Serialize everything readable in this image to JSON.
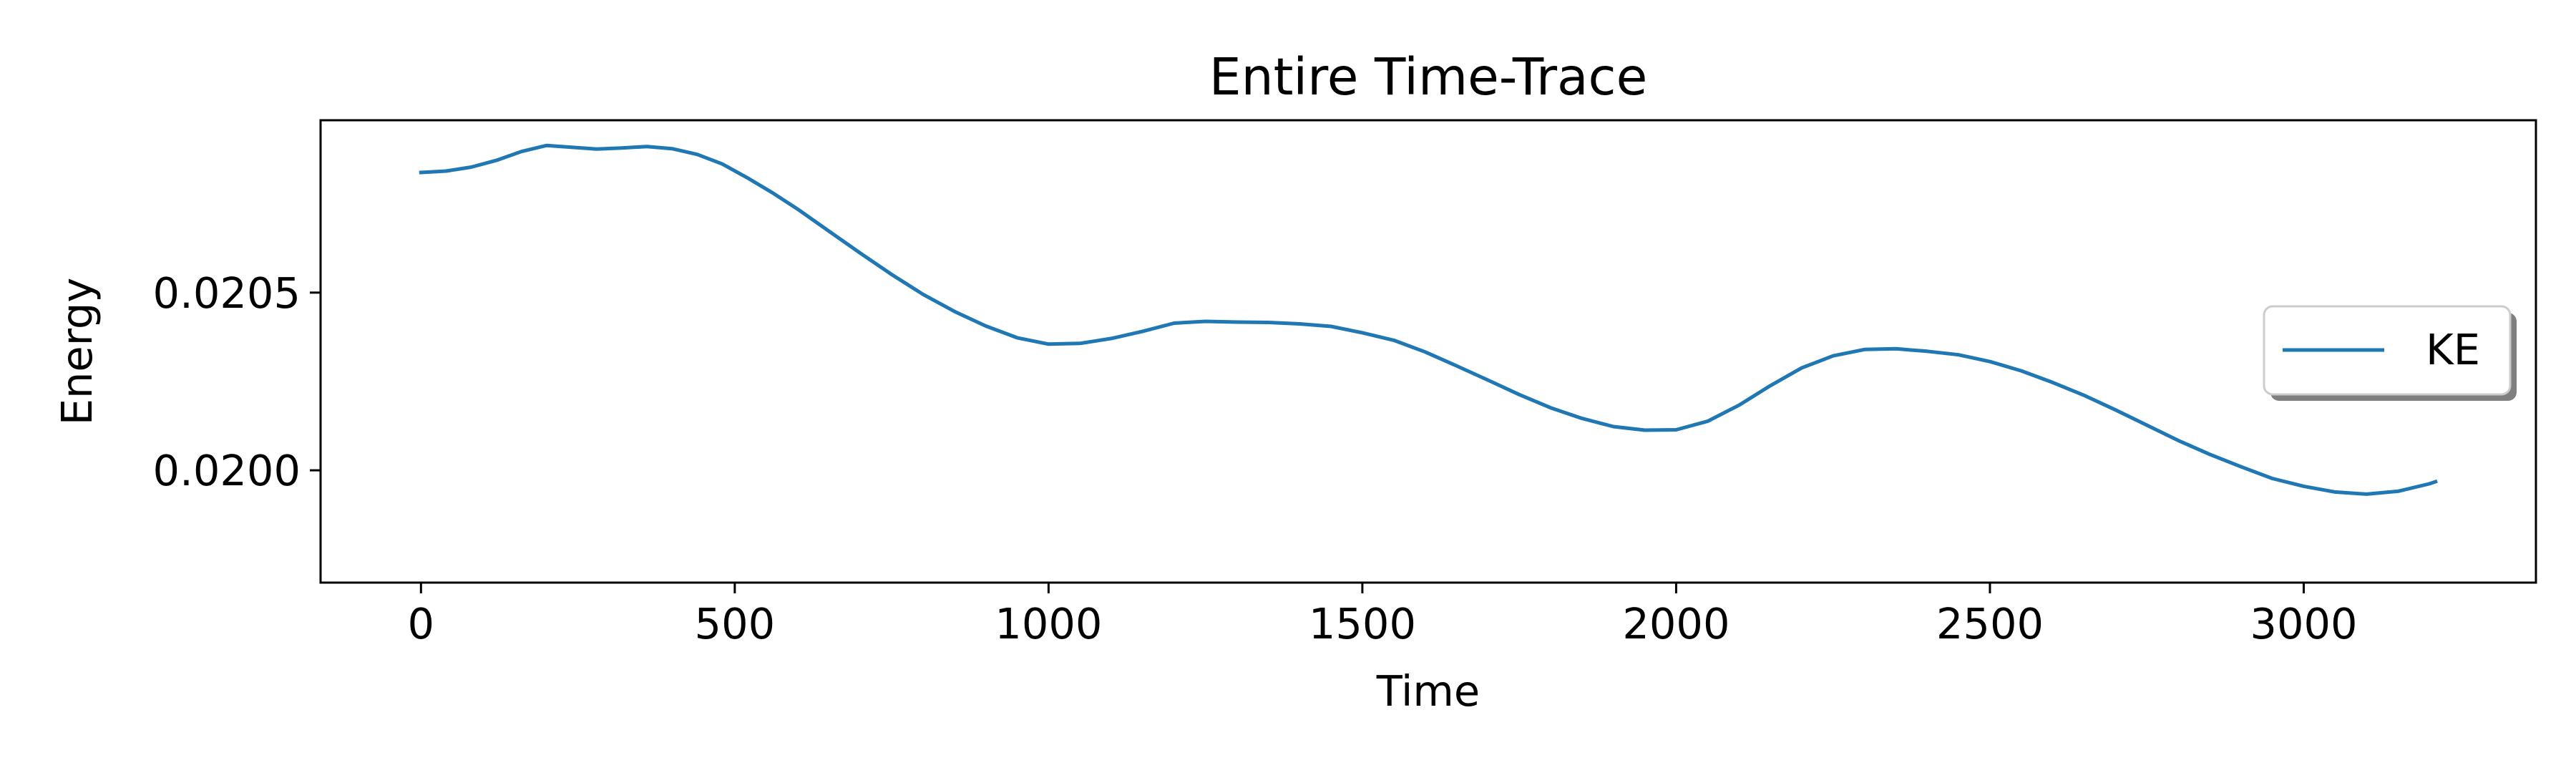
{
  "chart_data": {
    "type": "line",
    "title": "Entire Time-Trace",
    "xlabel": "Time",
    "ylabel": "Energy",
    "xlim": [
      -160,
      3370
    ],
    "ylim": [
      0.019684,
      0.020985
    ],
    "xticks": [
      0,
      500,
      1000,
      1500,
      2000,
      2500,
      3000
    ],
    "xtick_labels": [
      "0",
      "500",
      "1000",
      "1500",
      "2000",
      "2500",
      "3000"
    ],
    "yticks": [
      0.02,
      0.0205
    ],
    "ytick_labels": [
      "0.0200",
      "0.0205"
    ],
    "grid": false,
    "legend_position": "center-right",
    "series": [
      {
        "name": "KE",
        "color": "#1f77b4",
        "x": [
          0,
          40,
          80,
          120,
          160,
          200,
          240,
          280,
          320,
          360,
          400,
          440,
          480,
          520,
          560,
          600,
          650,
          700,
          750,
          800,
          850,
          900,
          950,
          1000,
          1050,
          1100,
          1150,
          1200,
          1250,
          1300,
          1350,
          1400,
          1450,
          1500,
          1550,
          1600,
          1650,
          1700,
          1750,
          1800,
          1850,
          1900,
          1950,
          2000,
          2050,
          2100,
          2150,
          2200,
          2250,
          2300,
          2350,
          2400,
          2450,
          2500,
          2550,
          2600,
          2650,
          2700,
          2750,
          2800,
          2850,
          2900,
          2950,
          3000,
          3050,
          3100,
          3150,
          3200,
          3210
        ],
        "values": [
          0.020838,
          0.020842,
          0.020853,
          0.020872,
          0.020897,
          0.020914,
          0.020909,
          0.020904,
          0.020907,
          0.020911,
          0.020905,
          0.020889,
          0.020862,
          0.020823,
          0.020781,
          0.020735,
          0.020673,
          0.020611,
          0.020551,
          0.020495,
          0.020447,
          0.020406,
          0.020373,
          0.020355,
          0.020357,
          0.020371,
          0.020391,
          0.020414,
          0.020419,
          0.020417,
          0.020416,
          0.020412,
          0.020405,
          0.020387,
          0.020366,
          0.020333,
          0.020294,
          0.020254,
          0.020213,
          0.020176,
          0.020146,
          0.020123,
          0.020113,
          0.020114,
          0.020138,
          0.020183,
          0.020238,
          0.020288,
          0.020322,
          0.02034,
          0.020342,
          0.020335,
          0.020325,
          0.020306,
          0.02028,
          0.020247,
          0.020211,
          0.02017,
          0.020127,
          0.020084,
          0.020045,
          0.02001,
          0.019977,
          0.019955,
          0.019939,
          0.019933,
          0.019941,
          0.019962,
          0.019968
        ]
      }
    ]
  }
}
